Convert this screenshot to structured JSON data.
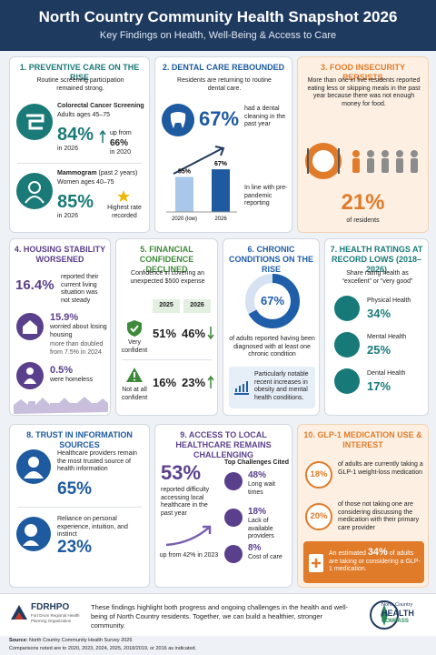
{
  "header": {
    "title": "North Country Community Health Snapshot 2026",
    "subtitle": "Key Findings on Health, Well-Being & Access to Care"
  },
  "preventive": {
    "title": "1. PREVENTIVE CARE ON THE RISE",
    "intro": "Routine screening participation remained strong.",
    "colorectal": {
      "name": "Colorectal Cancer Screening",
      "ages": "Adults ages 45–75",
      "value": "84%",
      "year": "in 2026",
      "change": "up from",
      "prior": "66%",
      "prior_year": "in 2020"
    },
    "mammogram": {
      "name": "Mammogram",
      "qual": "(past 2 years)",
      "ages": "Women ages 40–75",
      "value": "85%",
      "year": "in 2026",
      "note": "Highest rate recorded"
    }
  },
  "dental": {
    "title": "2. DENTAL CARE REBOUNDED",
    "intro": "Residents are returning to routine dental care.",
    "value": "67%",
    "value_text": "had a dental cleaning in the past year",
    "bars": [
      {
        "label": "2020 (low)",
        "value": 55,
        "value_label": "55%"
      },
      {
        "label": "2026",
        "value": 67,
        "value_label": "67%"
      }
    ],
    "note": "In line with pre-pandemic reporting"
  },
  "food": {
    "title": "3. FOOD INSECURITY PERSISTS",
    "text": "More than one in five residents reported eating less or skipping meals in the past year because there was not enough money for food.",
    "value": "21%",
    "value_text": "of residents"
  },
  "housing": {
    "title": "4. HOUSING STABILITY WORSENED",
    "items": [
      {
        "value": "16.4%",
        "text": "reported their current living situation was not steady"
      },
      {
        "value": "15.9%",
        "text": "worried about losing housing",
        "note": "more than doubled from 7.5% in 2024"
      },
      {
        "value": "0.5%",
        "text": "were homeless"
      }
    ]
  },
  "financial": {
    "title": "5. FINANCIAL CONFIDENCE DECLINED",
    "intro": "Confidence in covering an unexpected $500 expense",
    "columns": [
      "2025",
      "2026"
    ],
    "rows": [
      {
        "label": "Very confident",
        "values": [
          "51%",
          "46%"
        ]
      },
      {
        "label": "Not at all confident",
        "values": [
          "16%",
          "23%"
        ]
      }
    ]
  },
  "chronic": {
    "title": "6. CHRONIC CONDITIONS ON THE RISE",
    "percent": 67,
    "percent_label": "67%",
    "text": "of adults reported having been diagnosed with at least one chronic condition",
    "note": "Particularly notable recent increases in obesity and mental health conditions."
  },
  "ratings": {
    "title": "7. HEALTH RATINGS AT RECORD LOWS (2018–2026)",
    "intro": "Share rating health as “excellent” or “very good”",
    "items": [
      {
        "label": "Physical Health",
        "value": "34%"
      },
      {
        "label": "Mental Health",
        "value": "25%"
      },
      {
        "label": "Dental Health",
        "value": "17%"
      }
    ]
  },
  "trust": {
    "title": "8. TRUST IN INFORMATION SOURCES",
    "items": [
      {
        "text": "Healthcare providers remain the most trusted source of health information",
        "value": "65%"
      },
      {
        "text": "Reliance on personal experience, intuition, and instinct",
        "value": "23%"
      }
    ]
  },
  "access": {
    "title": "9. ACCESS TO LOCAL HEALTHCARE REMAINS CHALLENGING",
    "value": "53%",
    "text": "reported difficulty accessing local healthcare in the past year",
    "change": "up from 42% in 2023",
    "challenges_title": "Top Challenges Cited",
    "challenges": [
      {
        "value": "48%",
        "label": "Long wait times"
      },
      {
        "value": "18%",
        "label": "Lack of available providers"
      },
      {
        "value": "8%",
        "label": "Cost of care"
      }
    ]
  },
  "glp1": {
    "title": "10. GLP-1 MEDICATION USE & INTEREST",
    "items": [
      {
        "value": "18%",
        "text": "of adults are currently taking a GLP-1 weight-loss medication"
      },
      {
        "value": "20%",
        "text": "of those not taking one are considering discussing the medication with their primary care provider"
      }
    ],
    "callout": {
      "prefix": "An estimated",
      "value": "34%",
      "suffix": "of adults are taking or considering a GLP-1 medication."
    }
  },
  "footer": {
    "org": "FDRHPO",
    "org_full": "Fort Drum Regional Health Planning Organization",
    "message": "These findings highlight both progress and ongoing challenges in the health and well-being of North Country residents. Together, we can build a healthier, stronger community.",
    "logo_top": "North Country",
    "logo_main": "HEALTH",
    "logo_sub": "COMPASS",
    "source_label": "Source:",
    "source": "North Country Community Health Survey 2026",
    "comparisons": "Comparisons noted are to 2020, 2023, 2024, 2025, 2018/2019, or 2016 as indicated."
  }
}
